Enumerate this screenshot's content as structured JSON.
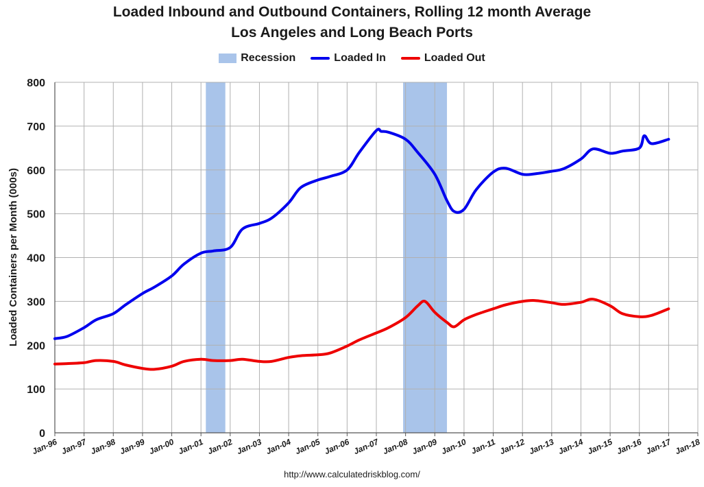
{
  "colors": {
    "recession": "#a9c4ea",
    "loaded_in": "#0000ee",
    "loaded_out": "#ee0000",
    "grid": "#b0b0b0"
  },
  "footer": "http://www.calculatedriskblog.com/",
  "chart_data": {
    "type": "line",
    "title": "Loaded Inbound and Outbound Containers, Rolling 12 month Average",
    "subtitle": "Los Angeles and Long Beach Ports",
    "ylabel": "Loaded Containers per Month (000s)",
    "xlabel": "",
    "ylim": [
      0,
      800
    ],
    "yticks": [
      0,
      100,
      200,
      300,
      400,
      500,
      600,
      700,
      800
    ],
    "xlim": [
      "1996-01",
      "2018-01"
    ],
    "xticks": [
      "Jan-96",
      "Jan-97",
      "Jan-98",
      "Jan-99",
      "Jan-00",
      "Jan-01",
      "Jan-02",
      "Jan-03",
      "Jan-04",
      "Jan-05",
      "Jan-06",
      "Jan-07",
      "Jan-08",
      "Jan-09",
      "Jan-10",
      "Jan-11",
      "Jan-12",
      "Jan-13",
      "Jan-14",
      "Jan-15",
      "Jan-16",
      "Jan-17",
      "Jan-18"
    ],
    "grid": true,
    "legend": "top-center",
    "legend_entries": [
      "Recession",
      "Loaded In",
      "Loaded Out"
    ],
    "recessions": [
      {
        "start": "2001-03",
        "end": "2001-11"
      },
      {
        "start": "2007-12",
        "end": "2009-06"
      }
    ],
    "series": [
      {
        "name": "Loaded In",
        "x": [
          "1996-01",
          "1996-06",
          "1997-01",
          "1997-06",
          "1998-01",
          "1998-06",
          "1999-01",
          "1999-06",
          "2000-01",
          "2000-06",
          "2001-01",
          "2001-06",
          "2002-01",
          "2002-06",
          "2003-01",
          "2003-06",
          "2004-01",
          "2004-06",
          "2005-01",
          "2005-06",
          "2006-01",
          "2006-06",
          "2007-01",
          "2007-03",
          "2007-06",
          "2008-01",
          "2008-06",
          "2009-01",
          "2009-06",
          "2009-09",
          "2010-01",
          "2010-06",
          "2011-01",
          "2011-06",
          "2012-01",
          "2012-06",
          "2013-01",
          "2013-06",
          "2014-01",
          "2014-06",
          "2015-01",
          "2015-06",
          "2016-01",
          "2016-03",
          "2016-06",
          "2017-01"
        ],
        "values": [
          215,
          220,
          240,
          258,
          272,
          292,
          318,
          333,
          358,
          385,
          410,
          415,
          423,
          465,
          478,
          490,
          525,
          560,
          577,
          585,
          600,
          640,
          690,
          688,
          686,
          670,
          640,
          590,
          530,
          505,
          510,
          555,
          595,
          604,
          590,
          591,
          597,
          603,
          625,
          648,
          638,
          643,
          650,
          678,
          660,
          670
        ]
      },
      {
        "name": "Loaded Out",
        "x": [
          "1996-01",
          "1996-06",
          "1997-01",
          "1997-06",
          "1998-01",
          "1998-06",
          "1999-01",
          "1999-06",
          "2000-01",
          "2000-06",
          "2001-01",
          "2001-06",
          "2002-01",
          "2002-06",
          "2003-01",
          "2003-06",
          "2004-01",
          "2004-06",
          "2005-01",
          "2005-06",
          "2006-01",
          "2006-06",
          "2007-01",
          "2007-06",
          "2008-01",
          "2008-06",
          "2008-09",
          "2009-01",
          "2009-06",
          "2009-09",
          "2010-01",
          "2010-06",
          "2011-01",
          "2011-06",
          "2012-01",
          "2012-06",
          "2013-01",
          "2013-06",
          "2014-01",
          "2014-06",
          "2015-01",
          "2015-06",
          "2016-01",
          "2016-06",
          "2017-01"
        ],
        "values": [
          157,
          158,
          160,
          165,
          163,
          155,
          147,
          145,
          152,
          163,
          168,
          165,
          165,
          168,
          163,
          163,
          172,
          176,
          178,
          182,
          198,
          212,
          228,
          240,
          263,
          290,
          300,
          275,
          252,
          242,
          258,
          270,
          283,
          292,
          300,
          302,
          297,
          293,
          298,
          305,
          290,
          272,
          265,
          268,
          283
        ]
      }
    ]
  }
}
